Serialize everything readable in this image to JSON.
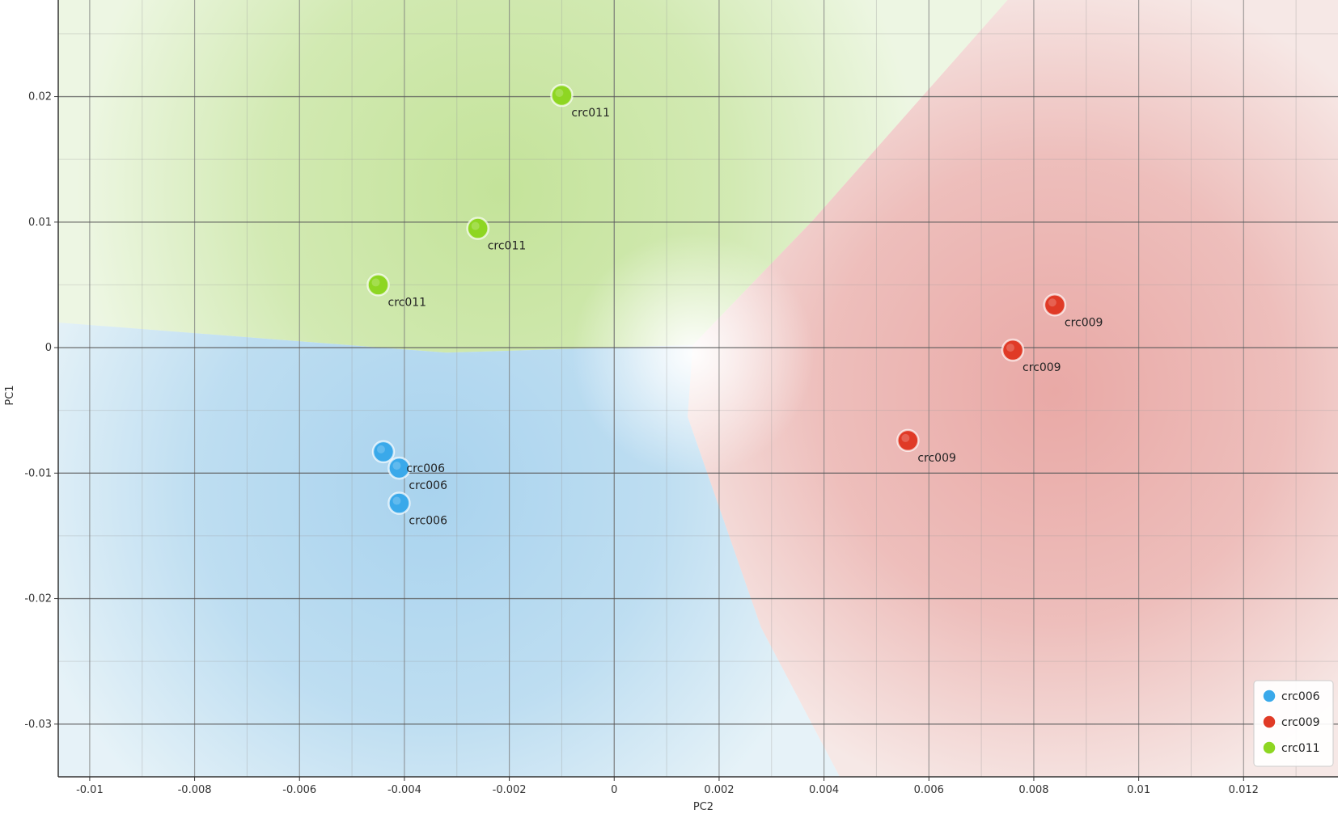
{
  "chart_data": {
    "type": "scatter",
    "title": "",
    "xlabel": "PC2",
    "ylabel": "PC1",
    "xlim": [
      -0.0106,
      0.0138
    ],
    "ylim": [
      -0.0342,
      0.0277
    ],
    "x_ticks": [
      {
        "value": -0.01,
        "label": "-0.01"
      },
      {
        "value": -0.008,
        "label": "-0.008"
      },
      {
        "value": -0.006,
        "label": "-0.006"
      },
      {
        "value": -0.004,
        "label": "-0.004"
      },
      {
        "value": -0.002,
        "label": "-0.002"
      },
      {
        "value": 0,
        "label": "0"
      },
      {
        "value": 0.002,
        "label": "0.002"
      },
      {
        "value": 0.004,
        "label": "0.004"
      },
      {
        "value": 0.006,
        "label": "0.006"
      },
      {
        "value": 0.008,
        "label": "0.008"
      },
      {
        "value": 0.01,
        "label": "0.01"
      },
      {
        "value": 0.012,
        "label": "0.012"
      }
    ],
    "y_ticks": [
      {
        "value": 0.02,
        "label": "0.02"
      },
      {
        "value": 0.01,
        "label": "0.01"
      },
      {
        "value": 0,
        "label": "0"
      },
      {
        "value": -0.01,
        "label": "-0.01"
      },
      {
        "value": -0.02,
        "label": "-0.02"
      },
      {
        "value": -0.03,
        "label": "-0.03"
      }
    ],
    "grid": true,
    "legend_position": "bottom-right",
    "series": [
      {
        "name": "crc006",
        "color": "#3aa9ea",
        "region_color": "#a9d3ee",
        "points": [
          {
            "x": -0.0044,
            "y": -0.0083,
            "label": ""
          },
          {
            "x": -0.0041,
            "y": -0.0096,
            "label": "crc006"
          },
          {
            "x": -0.0041,
            "y": -0.0124,
            "label": "crc006"
          }
        ],
        "extra_labels": [
          {
            "x": -0.0041,
            "y": -0.0096,
            "label": "crc006"
          }
        ]
      },
      {
        "name": "crc009",
        "color": "#e03a26",
        "region_color": "#e9a9a6",
        "points": [
          {
            "x": 0.0084,
            "y": 0.0034,
            "label": "crc009"
          },
          {
            "x": 0.0076,
            "y": -0.0002,
            "label": "crc009"
          },
          {
            "x": 0.0056,
            "y": -0.0074,
            "label": "crc009"
          }
        ],
        "extra_labels": []
      },
      {
        "name": "crc011",
        "color": "#8ed622",
        "region_color": "#c4e39a",
        "points": [
          {
            "x": -0.001,
            "y": 0.0201,
            "label": "crc011"
          },
          {
            "x": -0.0026,
            "y": 0.0095,
            "label": "crc011"
          },
          {
            "x": -0.0045,
            "y": 0.005,
            "label": "crc011"
          }
        ],
        "extra_labels": []
      }
    ]
  }
}
